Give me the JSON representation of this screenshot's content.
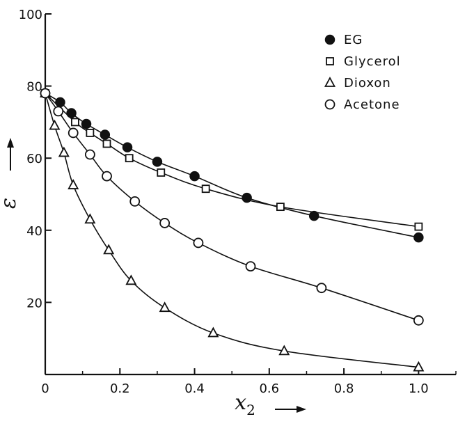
{
  "chart_data": {
    "type": "line",
    "xlabel": "x",
    "xlabel_sub": "2",
    "ylabel": "ε",
    "xlim": [
      0,
      1.1
    ],
    "ylim": [
      0,
      100
    ],
    "x_ticks": [
      0,
      0.2,
      0.4,
      0.6,
      0.8,
      1.0
    ],
    "x_tick_labels": [
      "0",
      "0.2",
      "0.4",
      "0.6",
      "0.8",
      "1.0"
    ],
    "y_ticks": [
      20,
      40,
      60,
      80,
      100
    ],
    "y_tick_labels": [
      "20",
      "40",
      "60",
      "80",
      "100"
    ],
    "grid": false,
    "legend_position": "top-right",
    "series": [
      {
        "name": "EG",
        "marker": "filled-circle",
        "x": [
          0,
          0.04,
          0.07,
          0.11,
          0.16,
          0.22,
          0.3,
          0.4,
          0.54,
          0.72,
          1.0
        ],
        "y": [
          78,
          75.5,
          72.5,
          69.5,
          66.5,
          63,
          59,
          55,
          49,
          44,
          38
        ]
      },
      {
        "name": "Glycerol",
        "marker": "square",
        "x": [
          0,
          0.08,
          0.12,
          0.165,
          0.225,
          0.31,
          0.43,
          0.63,
          1.0
        ],
        "y": [
          78,
          70,
          67,
          64,
          60,
          56,
          51.5,
          46.5,
          41
        ]
      },
      {
        "name": "Dioxon",
        "marker": "triangle",
        "x": [
          0,
          0.025,
          0.05,
          0.075,
          0.12,
          0.17,
          0.23,
          0.32,
          0.45,
          0.64,
          1.0
        ],
        "y": [
          78,
          69,
          61.5,
          52.5,
          43,
          34.5,
          26,
          18.5,
          11.5,
          6.5,
          2
        ]
      },
      {
        "name": "Acetone",
        "marker": "open-circle",
        "x": [
          0,
          0.035,
          0.075,
          0.12,
          0.165,
          0.24,
          0.32,
          0.41,
          0.55,
          0.74,
          1.0
        ],
        "y": [
          78,
          73,
          67,
          61,
          55,
          48,
          42,
          36.5,
          30,
          24,
          15
        ]
      }
    ]
  }
}
